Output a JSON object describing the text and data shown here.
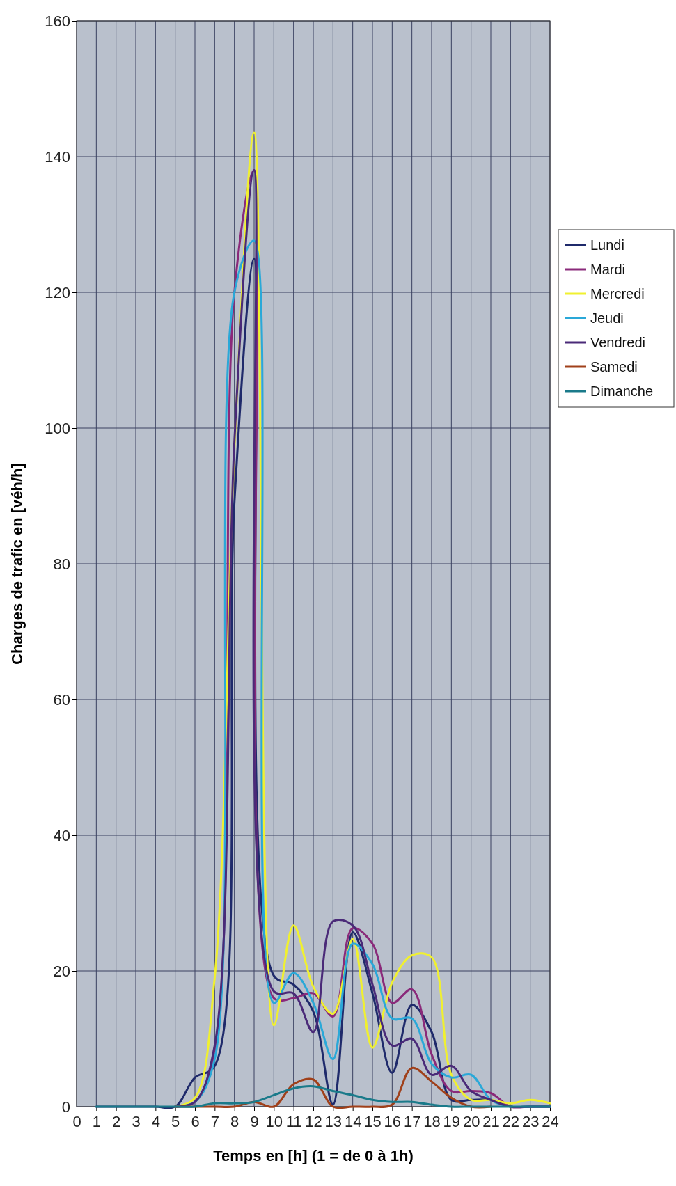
{
  "chart_data": {
    "type": "line",
    "xlabel": "Temps en [h] (1 = de 0 à 1h)",
    "ylabel": "Charges de trafic en [véh/h]",
    "x": [
      1,
      2,
      3,
      4,
      5,
      6,
      7,
      8,
      9,
      10,
      11,
      12,
      13,
      14,
      15,
      16,
      17,
      18,
      19,
      20,
      21,
      22,
      23,
      24
    ],
    "xlim": [
      0,
      24
    ],
    "xticks": [
      0,
      1,
      2,
      3,
      4,
      5,
      6,
      7,
      8,
      9,
      10,
      11,
      12,
      13,
      14,
      15,
      16,
      17,
      18,
      19,
      20,
      21,
      22,
      23,
      24
    ],
    "ylim": [
      0,
      160
    ],
    "yticks": [
      0,
      20,
      40,
      60,
      80,
      100,
      120,
      140,
      160
    ],
    "grid": true,
    "legend": "right",
    "series": [
      {
        "name": "Lundi",
        "color": "#1f2a6b",
        "values": [
          0,
          0,
          0,
          0,
          0,
          4.3,
          6,
          89,
          125,
          19.3,
          18,
          14,
          0.3,
          25.7,
          16.7,
          5,
          15,
          11,
          1,
          1,
          1,
          0,
          0,
          0
        ]
      },
      {
        "name": "Mardi",
        "color": "#8a2a7a",
        "values": [
          null,
          null,
          null,
          null,
          0,
          0.7,
          8,
          120,
          138,
          16,
          16,
          16.7,
          13.3,
          26.3,
          24,
          15.3,
          17.3,
          7.7,
          2.3,
          2.3,
          2,
          0,
          0,
          0
        ]
      },
      {
        "name": "Mercredi",
        "color": "#f0f030",
        "values": [
          null,
          null,
          null,
          null,
          0,
          1.3,
          19,
          97,
          143.6,
          12,
          26.7,
          17.7,
          13.7,
          24.7,
          8.7,
          18.3,
          22.3,
          22,
          4.7,
          1,
          1,
          0.5,
          1,
          0.5
        ]
      },
      {
        "name": "Jeudi",
        "color": "#2aa8d8",
        "values": [
          null,
          null,
          null,
          null,
          0,
          0.7,
          7,
          120,
          127.6,
          15.3,
          19.7,
          15.3,
          7,
          24,
          21,
          13,
          13,
          6.3,
          4.3,
          4.7,
          1,
          0,
          0,
          0
        ]
      },
      {
        "name": "Vendredi",
        "color": "#4a2a78",
        "values": [
          null,
          null,
          null,
          null,
          0,
          0.7,
          9,
          98,
          138,
          17,
          16.7,
          11,
          27.3,
          26.7,
          18,
          9,
          10,
          4.7,
          6,
          2.3,
          1,
          0,
          0,
          0
        ]
      },
      {
        "name": "Samedi",
        "color": "#a0401a",
        "values": [
          null,
          null,
          null,
          null,
          0,
          0,
          0,
          0,
          0.7,
          0,
          3.3,
          4,
          0,
          0,
          0,
          0.3,
          5.7,
          3.7,
          1.3,
          0,
          0,
          null,
          null,
          null
        ]
      },
      {
        "name": "Dimanche",
        "color": "#1a7a8a",
        "values": [
          0,
          0,
          0,
          0,
          0,
          0,
          0.5,
          0.5,
          0.7,
          1.7,
          2.7,
          3,
          2.3,
          1.7,
          1,
          0.7,
          0.7,
          0.3,
          0,
          0,
          0,
          0,
          0,
          0
        ]
      }
    ]
  }
}
